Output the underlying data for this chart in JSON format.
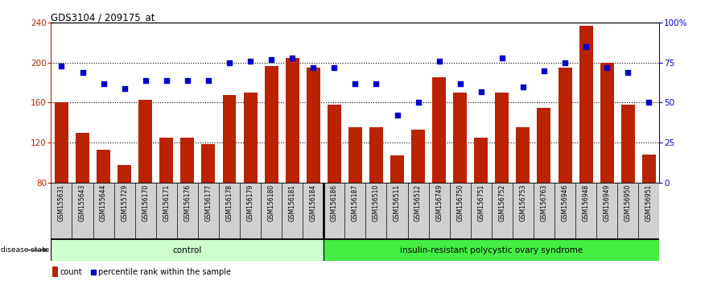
{
  "title": "GDS3104 / 209175_at",
  "samples": [
    "GSM155631",
    "GSM155643",
    "GSM155644",
    "GSM155729",
    "GSM156170",
    "GSM156171",
    "GSM156176",
    "GSM156177",
    "GSM156178",
    "GSM156179",
    "GSM156180",
    "GSM156181",
    "GSM156184",
    "GSM156186",
    "GSM156187",
    "GSM156510",
    "GSM156511",
    "GSM156512",
    "GSM156749",
    "GSM156750",
    "GSM156751",
    "GSM156752",
    "GSM156753",
    "GSM156763",
    "GSM156946",
    "GSM156948",
    "GSM156949",
    "GSM156950",
    "GSM156951"
  ],
  "counts": [
    160,
    130,
    113,
    97,
    163,
    125,
    125,
    118,
    168,
    170,
    197,
    205,
    195,
    158,
    135,
    135,
    107,
    133,
    185,
    170,
    125,
    170,
    135,
    155,
    195,
    237,
    200,
    158,
    108
  ],
  "percentiles": [
    73,
    69,
    62,
    59,
    64,
    64,
    64,
    64,
    75,
    76,
    77,
    78,
    72,
    72,
    62,
    62,
    42,
    50,
    76,
    62,
    57,
    78,
    60,
    70,
    75,
    85,
    72,
    69,
    50
  ],
  "n_control": 13,
  "control_label": "control",
  "disease_label": "insulin-resistant polycystic ovary syndrome",
  "bar_color": "#bb2200",
  "dot_color": "#0000cc",
  "ymin": 80,
  "ymax": 240,
  "yticks_left": [
    80,
    120,
    160,
    200,
    240
  ],
  "right_yticks": [
    0,
    25,
    50,
    75,
    100
  ],
  "right_yticklabels": [
    "0",
    "25",
    "50",
    "75",
    "100%"
  ],
  "control_bg": "#ccffcc",
  "disease_bg": "#44ee44",
  "label_bg": "#d0d0d0",
  "plot_bg": "#ffffff",
  "dotted_lines_pct": [
    25,
    50,
    75
  ]
}
